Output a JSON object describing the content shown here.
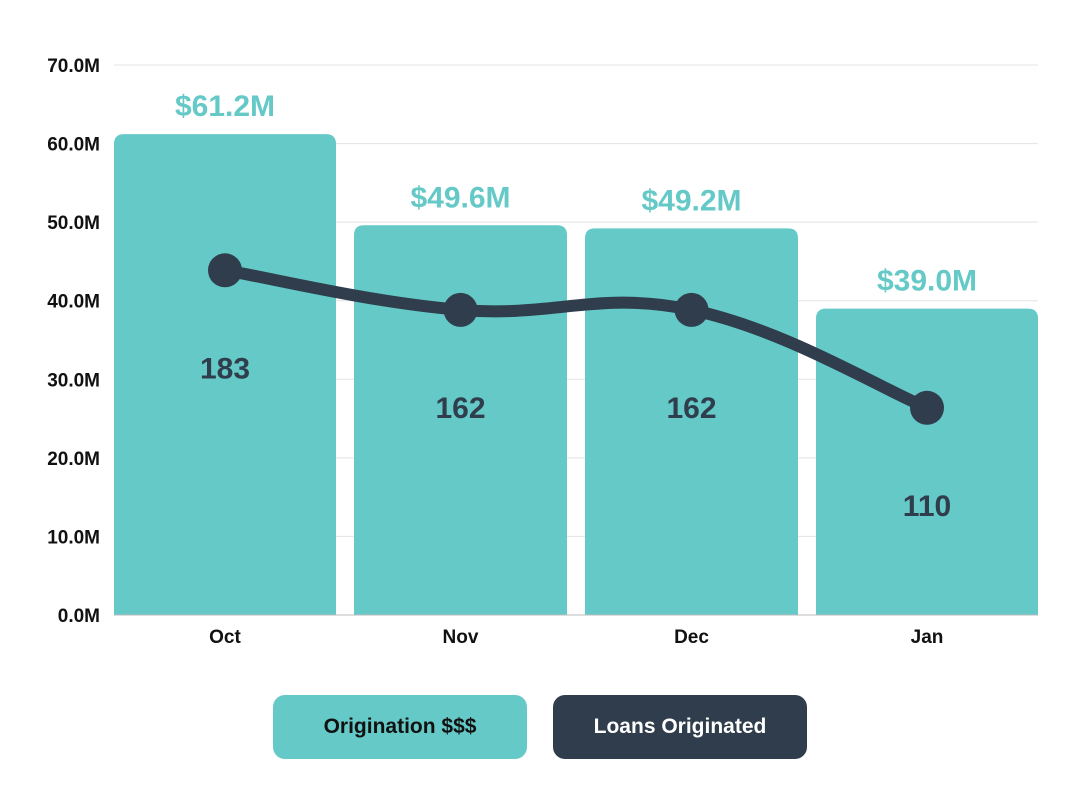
{
  "colors": {
    "bar": "#64C9C7",
    "line": "#2F3D4C",
    "bar_label": "#64C9C7",
    "count_label": "#2F3D4C",
    "grid": "#E3E3E3",
    "axis": "#BBBBBB"
  },
  "chart_data": {
    "type": "bar",
    "categories": [
      "Oct",
      "Nov",
      "Dec",
      "Jan"
    ],
    "series": [
      {
        "name": "Origination $$$",
        "kind": "bar",
        "values": [
          61.2,
          49.6,
          49.2,
          39.0
        ],
        "labels": [
          "$61.2M",
          "$49.6M",
          "$49.2M",
          "$39.0M"
        ]
      },
      {
        "name": "Loans Originated",
        "kind": "line",
        "values": [
          183,
          162,
          162,
          110
        ],
        "labels": [
          "183",
          "162",
          "162",
          "110"
        ]
      }
    ],
    "ylim": [
      0,
      70
    ],
    "yticks": [
      "0.0M",
      "10.0M",
      "20.0M",
      "30.0M",
      "40.0M",
      "50.0M",
      "60.0M",
      "70.0M"
    ],
    "line_axis_range": [
      0,
      292
    ],
    "grid": true,
    "legend_position": "bottom-center",
    "title": "",
    "xlabel": "",
    "ylabel": ""
  },
  "legend": {
    "origination_label": "Origination $$$",
    "loans_label": "Loans Originated"
  }
}
